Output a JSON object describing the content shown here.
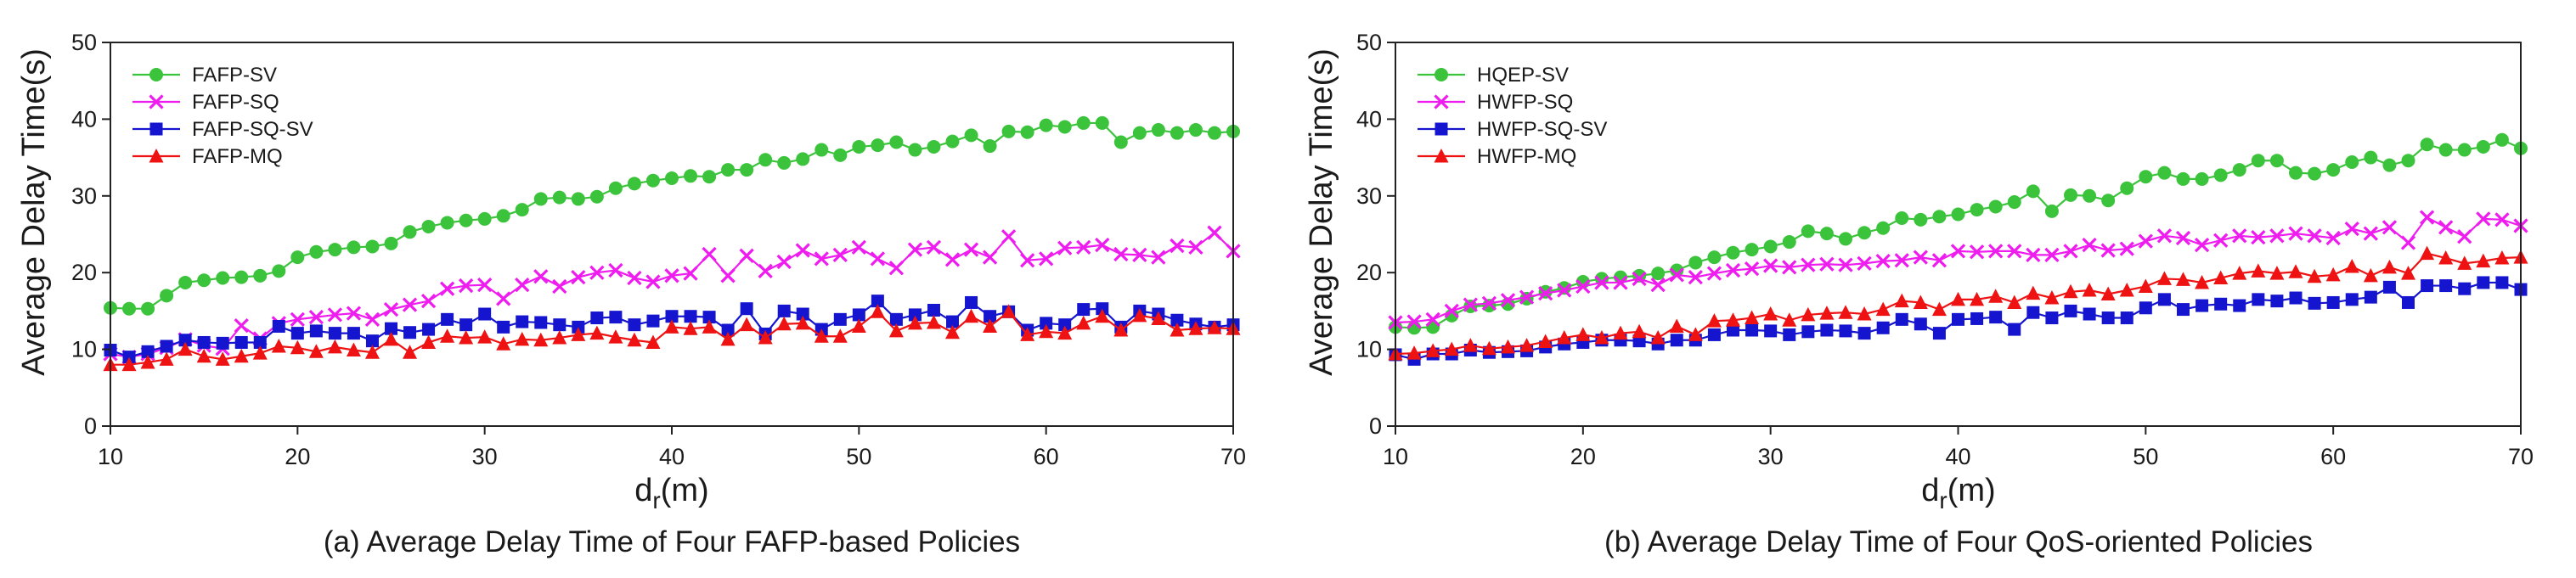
{
  "chart_data": [
    {
      "type": "line",
      "title": "(a) Average Delay Time of Four FAFP-based Policies",
      "xlabel_main": "d",
      "xlabel_sub": "r",
      "xlabel_unit": "(m)",
      "ylabel": "Average Delay Time(s)",
      "xlim": [
        10,
        70
      ],
      "ylim": [
        0,
        50
      ],
      "xticks": [
        10,
        20,
        30,
        40,
        50,
        60,
        70
      ],
      "yticks": [
        0,
        10,
        20,
        30,
        40,
        50
      ],
      "legend_position": "top-left",
      "x": [
        10,
        11,
        12,
        13,
        14,
        15,
        16,
        17,
        18,
        19,
        20,
        21,
        22,
        23,
        24,
        25,
        26,
        27,
        28,
        29,
        30,
        31,
        32,
        33,
        34,
        35,
        36,
        37,
        38,
        39,
        40,
        41,
        42,
        43,
        44,
        45,
        46,
        47,
        48,
        49,
        50,
        51,
        52,
        53,
        54,
        55,
        56,
        57,
        58,
        59,
        60,
        61,
        62,
        63,
        64,
        65,
        66,
        67,
        68,
        69,
        70
      ],
      "series": [
        {
          "name": "FAFP-SV",
          "color": "#3bc43b",
          "marker": "circle",
          "values": [
            15.4,
            15.3,
            15.3,
            17.0,
            18.7,
            19.0,
            19.3,
            19.4,
            19.6,
            20.2,
            22.0,
            22.7,
            23.0,
            23.3,
            23.4,
            23.8,
            25.3,
            26.0,
            26.5,
            26.8,
            27.0,
            27.4,
            28.2,
            29.6,
            29.8,
            29.6,
            29.9,
            31.0,
            31.6,
            32.0,
            32.3,
            32.6,
            32.5,
            33.4,
            33.4,
            34.7,
            34.3,
            34.8,
            36.0,
            35.3,
            36.4,
            36.6,
            37.0,
            36.0,
            36.4,
            37.1,
            37.9,
            36.5,
            38.4,
            38.3,
            39.2,
            39.0,
            39.5,
            39.5,
            37.0,
            38.2,
            38.6,
            38.2,
            38.6,
            38.2,
            38.4
          ]
        },
        {
          "name": "FAFP-SQ",
          "color": "#ee1cee",
          "marker": "x",
          "values": [
            9.4,
            9.0,
            9.4,
            10.2,
            11.3,
            10.5,
            10.1,
            13.1,
            11.4,
            13.4,
            13.9,
            14.2,
            14.5,
            14.7,
            13.9,
            15.2,
            15.8,
            16.3,
            17.9,
            18.3,
            18.4,
            16.6,
            18.4,
            19.5,
            18.2,
            19.4,
            20.0,
            20.3,
            19.3,
            18.8,
            19.6,
            19.9,
            22.4,
            19.6,
            22.2,
            20.2,
            21.4,
            22.9,
            21.8,
            22.3,
            23.3,
            21.8,
            20.6,
            23.0,
            23.3,
            21.7,
            23.0,
            22.0,
            24.7,
            21.6,
            21.8,
            23.2,
            23.3,
            23.6,
            22.4,
            22.3,
            22.0,
            23.5,
            23.3,
            25.2,
            22.8
          ]
        },
        {
          "name": "FAFP-SQ-SV",
          "color": "#1515cf",
          "marker": "square",
          "values": [
            9.9,
            9.0,
            9.7,
            10.4,
            11.2,
            10.9,
            10.8,
            10.9,
            10.9,
            13.0,
            12.1,
            12.4,
            12.1,
            12.1,
            11.1,
            12.7,
            12.2,
            12.6,
            13.9,
            13.2,
            14.6,
            12.9,
            13.6,
            13.5,
            13.2,
            12.9,
            14.1,
            14.2,
            13.2,
            13.7,
            14.3,
            14.3,
            14.2,
            12.5,
            15.3,
            12.0,
            15.0,
            14.6,
            12.6,
            13.9,
            14.5,
            16.3,
            13.9,
            14.5,
            15.1,
            13.6,
            16.1,
            14.3,
            14.9,
            12.5,
            13.4,
            13.2,
            15.2,
            15.3,
            12.9,
            15.0,
            14.6,
            13.8,
            13.3,
            12.9,
            13.2
          ]
        },
        {
          "name": "FAFP-MQ",
          "color": "#ee1212",
          "marker": "triangle",
          "values": [
            8.0,
            8.0,
            8.3,
            8.7,
            10.0,
            9.1,
            8.7,
            9.1,
            9.5,
            10.4,
            10.2,
            9.7,
            10.3,
            9.9,
            9.6,
            11.3,
            9.6,
            10.9,
            11.7,
            11.5,
            11.6,
            10.7,
            11.3,
            11.2,
            11.5,
            11.9,
            12.1,
            11.6,
            11.2,
            10.9,
            12.9,
            12.7,
            12.9,
            11.3,
            13.2,
            11.5,
            13.3,
            13.4,
            11.7,
            11.7,
            13.0,
            14.9,
            12.4,
            13.4,
            13.5,
            12.2,
            14.3,
            13.0,
            14.9,
            11.9,
            12.3,
            12.1,
            13.4,
            14.3,
            12.5,
            14.4,
            14.0,
            12.5,
            12.7,
            12.8,
            12.7
          ]
        }
      ]
    },
    {
      "type": "line",
      "title": "(b) Average Delay Time of Four QoS-oriented Policies",
      "xlabel_main": "d",
      "xlabel_sub": "r",
      "xlabel_unit": "(m)",
      "ylabel": "Average Delay Time(s)",
      "xlim": [
        10,
        70
      ],
      "ylim": [
        0,
        50
      ],
      "xticks": [
        10,
        20,
        30,
        40,
        50,
        60,
        70
      ],
      "yticks": [
        0,
        10,
        20,
        30,
        40,
        50
      ],
      "legend_position": "top-left",
      "x": [
        10,
        11,
        12,
        13,
        14,
        15,
        16,
        17,
        18,
        19,
        20,
        21,
        22,
        23,
        24,
        25,
        26,
        27,
        28,
        29,
        30,
        31,
        32,
        33,
        34,
        35,
        36,
        37,
        38,
        39,
        40,
        41,
        42,
        43,
        44,
        45,
        46,
        47,
        48,
        49,
        50,
        51,
        52,
        53,
        54,
        55,
        56,
        57,
        58,
        59,
        60,
        61,
        62,
        63,
        64,
        65,
        66,
        67,
        68,
        69,
        70
      ],
      "series": [
        {
          "name": "HQEP-SV",
          "color": "#3bc43b",
          "marker": "circle",
          "values": [
            12.9,
            12.8,
            12.9,
            14.4,
            15.6,
            15.7,
            15.9,
            16.6,
            17.5,
            18.0,
            18.8,
            19.2,
            19.4,
            19.6,
            19.9,
            20.3,
            21.3,
            22.0,
            22.6,
            23.0,
            23.4,
            24.0,
            25.4,
            25.1,
            24.4,
            25.2,
            25.8,
            27.1,
            26.9,
            27.3,
            27.6,
            28.2,
            28.6,
            29.2,
            30.6,
            28.0,
            30.1,
            30.0,
            29.4,
            31.0,
            32.5,
            33.0,
            32.2,
            32.2,
            32.7,
            33.4,
            34.6,
            34.6,
            33.0,
            32.9,
            33.4,
            34.4,
            35.0,
            34.0,
            34.6,
            36.7,
            36.0,
            36.0,
            36.4,
            37.3,
            36.2
          ]
        },
        {
          "name": "HWFP-SQ",
          "color": "#ee1cee",
          "marker": "x",
          "values": [
            13.5,
            13.6,
            13.9,
            15.0,
            15.8,
            16.0,
            16.4,
            16.8,
            17.3,
            17.7,
            18.2,
            18.7,
            18.7,
            19.2,
            18.4,
            19.7,
            19.4,
            19.9,
            20.3,
            20.5,
            20.9,
            20.7,
            21.0,
            21.1,
            21.0,
            21.2,
            21.5,
            21.6,
            22.0,
            21.6,
            22.8,
            22.7,
            22.8,
            22.8,
            22.3,
            22.3,
            22.8,
            23.6,
            22.9,
            23.1,
            24.1,
            24.8,
            24.5,
            23.6,
            24.2,
            24.8,
            24.6,
            24.8,
            25.1,
            24.8,
            24.5,
            25.7,
            25.1,
            25.9,
            23.9,
            27.2,
            25.9,
            24.7,
            27.0,
            26.9,
            26.1
          ]
        },
        {
          "name": "HWFP-SQ-SV",
          "color": "#1515cf",
          "marker": "square",
          "values": [
            9.3,
            8.7,
            9.4,
            9.4,
            9.9,
            9.6,
            9.7,
            9.8,
            10.3,
            10.7,
            10.9,
            11.2,
            11.2,
            11.1,
            10.7,
            11.2,
            11.2,
            11.9,
            12.5,
            12.5,
            12.4,
            11.9,
            12.3,
            12.5,
            12.4,
            12.1,
            12.8,
            13.9,
            13.3,
            12.1,
            13.9,
            14.0,
            14.2,
            12.6,
            14.8,
            14.1,
            15.0,
            14.6,
            14.1,
            14.1,
            15.4,
            16.5,
            15.2,
            15.7,
            15.9,
            15.7,
            16.5,
            16.3,
            16.7,
            16.0,
            16.1,
            16.5,
            16.8,
            18.1,
            16.1,
            18.3,
            18.3,
            17.9,
            18.7,
            18.7,
            17.8
          ]
        },
        {
          "name": "HWFP-MQ",
          "color": "#ee1212",
          "marker": "triangle",
          "values": [
            9.4,
            9.5,
            9.8,
            10.0,
            10.5,
            10.1,
            10.3,
            10.5,
            11.0,
            11.5,
            11.9,
            11.5,
            12.1,
            12.3,
            11.5,
            13.0,
            11.9,
            13.7,
            13.8,
            14.1,
            14.6,
            13.8,
            14.5,
            14.7,
            14.8,
            14.6,
            15.2,
            16.3,
            16.1,
            15.2,
            16.5,
            16.5,
            16.9,
            16.1,
            17.3,
            16.7,
            17.5,
            17.7,
            17.2,
            17.7,
            18.2,
            19.2,
            19.1,
            18.7,
            19.3,
            19.9,
            20.2,
            19.9,
            20.1,
            19.5,
            19.7,
            20.8,
            19.6,
            20.7,
            19.9,
            22.5,
            21.9,
            21.2,
            21.5,
            21.9,
            22.0
          ]
        }
      ]
    }
  ]
}
